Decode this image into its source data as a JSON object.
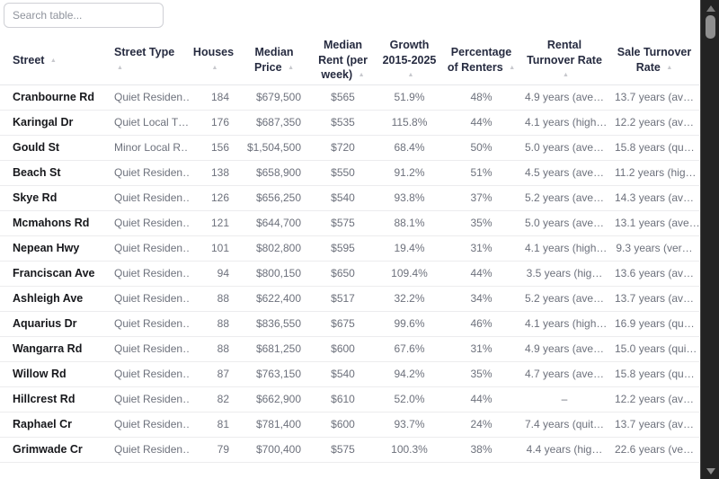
{
  "search": {
    "placeholder": "Search table..."
  },
  "table": {
    "columns": [
      "Street",
      "Street Type",
      "Houses",
      "Median Price",
      "Median Rent (per week)",
      "Growth 2015-2025",
      "Percentage of Renters",
      "Rental Turnover Rate",
      "Sale Turnover Rate"
    ],
    "rows": [
      [
        "Cranbourne Rd",
        "Quiet Residen…",
        "184",
        "$679,500",
        "$565",
        "51.9%",
        "48%",
        "4.9 years (ave…",
        "13.7 years (av…"
      ],
      [
        "Karingal Dr",
        "Quiet Local T…",
        "176",
        "$687,350",
        "$535",
        "115.8%",
        "44%",
        "4.1 years (high…",
        "12.2 years (av…"
      ],
      [
        "Gould St",
        "Minor Local R…",
        "156",
        "$1,504,500",
        "$720",
        "68.4%",
        "50%",
        "5.0 years (ave…",
        "15.8 years (qu…"
      ],
      [
        "Beach St",
        "Quiet Residen…",
        "138",
        "$658,900",
        "$550",
        "91.2%",
        "51%",
        "4.5 years (ave…",
        "11.2 years (hig…"
      ],
      [
        "Skye Rd",
        "Quiet Residen…",
        "126",
        "$656,250",
        "$540",
        "93.8%",
        "37%",
        "5.2 years (ave…",
        "14.3 years (av…"
      ],
      [
        "Mcmahons Rd",
        "Quiet Residen…",
        "121",
        "$644,700",
        "$575",
        "88.1%",
        "35%",
        "5.0 years (ave…",
        "13.1 years (ave…"
      ],
      [
        "Nepean Hwy",
        "Quiet Residen…",
        "101",
        "$802,800",
        "$595",
        "19.4%",
        "31%",
        "4.1 years (high…",
        "9.3 years (ver…"
      ],
      [
        "Franciscan Ave",
        "Quiet Residen…",
        "94",
        "$800,150",
        "$650",
        "109.4%",
        "44%",
        "3.5 years (hig…",
        "13.6 years (av…"
      ],
      [
        "Ashleigh Ave",
        "Quiet Residen…",
        "88",
        "$622,400",
        "$517",
        "32.2%",
        "34%",
        "5.2 years (ave…",
        "13.7 years (av…"
      ],
      [
        "Aquarius Dr",
        "Quiet Residen…",
        "88",
        "$836,550",
        "$675",
        "99.6%",
        "46%",
        "4.1 years (high…",
        "16.9 years (qu…"
      ],
      [
        "Wangarra Rd",
        "Quiet Residen…",
        "88",
        "$681,250",
        "$600",
        "67.6%",
        "31%",
        "4.9 years (ave…",
        "15.0 years (qui…"
      ],
      [
        "Willow Rd",
        "Quiet Residen…",
        "87",
        "$763,150",
        "$540",
        "94.2%",
        "35%",
        "4.7 years (ave…",
        "15.8 years (qu…"
      ],
      [
        "Hillcrest Rd",
        "Quiet Residen…",
        "82",
        "$662,900",
        "$610",
        "52.0%",
        "44%",
        "–",
        "12.2 years (av…"
      ],
      [
        "Raphael Cr",
        "Quiet Residen…",
        "81",
        "$781,400",
        "$600",
        "93.7%",
        "24%",
        "7.4 years (quit…",
        "13.7 years (av…"
      ],
      [
        "Grimwade Cr",
        "Quiet Residen…",
        "79",
        "$700,400",
        "$575",
        "100.3%",
        "38%",
        "4.4 years (hig…",
        "22.6 years (ve…"
      ]
    ]
  },
  "icons": {
    "sort_ascending": "▲",
    "scroll_up": "▲",
    "scroll_down": "▼"
  },
  "colors": {
    "header_text": "#262b40",
    "street_text": "#17181c",
    "cell_text": "#6d717c",
    "divider": "#ececee",
    "sort_icon": "#c7c8cd",
    "search_border": "#cfd0d5",
    "scrollbar_track": "#232323",
    "scrollbar_thumb": "#8f8f8f",
    "background": "#ffffff"
  }
}
